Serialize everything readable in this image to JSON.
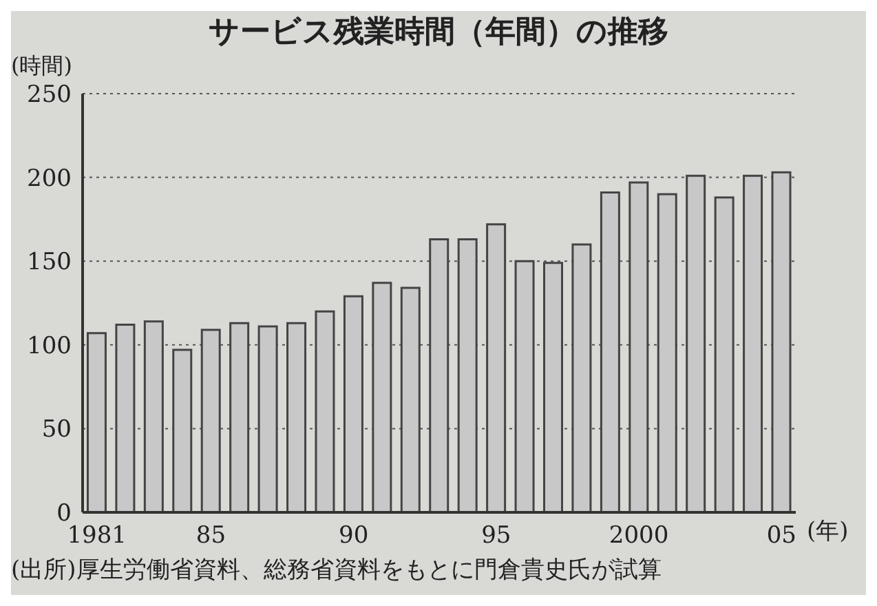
{
  "chart_data": {
    "type": "bar",
    "title": "サービス残業時間（年間）の推移",
    "ylabel": "(時間)",
    "xlabel": "(年)",
    "categories": [
      "1981",
      null,
      null,
      null,
      "85",
      null,
      null,
      null,
      null,
      "90",
      null,
      null,
      null,
      null,
      "95",
      null,
      null,
      null,
      null,
      "2000",
      null,
      null,
      null,
      null,
      "05"
    ],
    "values": [
      107,
      112,
      114,
      97,
      109,
      113,
      111,
      113,
      120,
      129,
      137,
      134,
      163,
      163,
      172,
      150,
      149,
      160,
      191,
      197,
      190,
      201,
      188,
      201,
      203
    ],
    "color": "#c8c8c8",
    "ylim": [
      0,
      250
    ],
    "yticks": [
      0,
      50,
      100,
      150,
      200,
      250
    ],
    "grid": "y",
    "annotations": [
      "(出所)厚生労働省資料、総務省資料をもとに門倉貴史氏が試算"
    ]
  }
}
